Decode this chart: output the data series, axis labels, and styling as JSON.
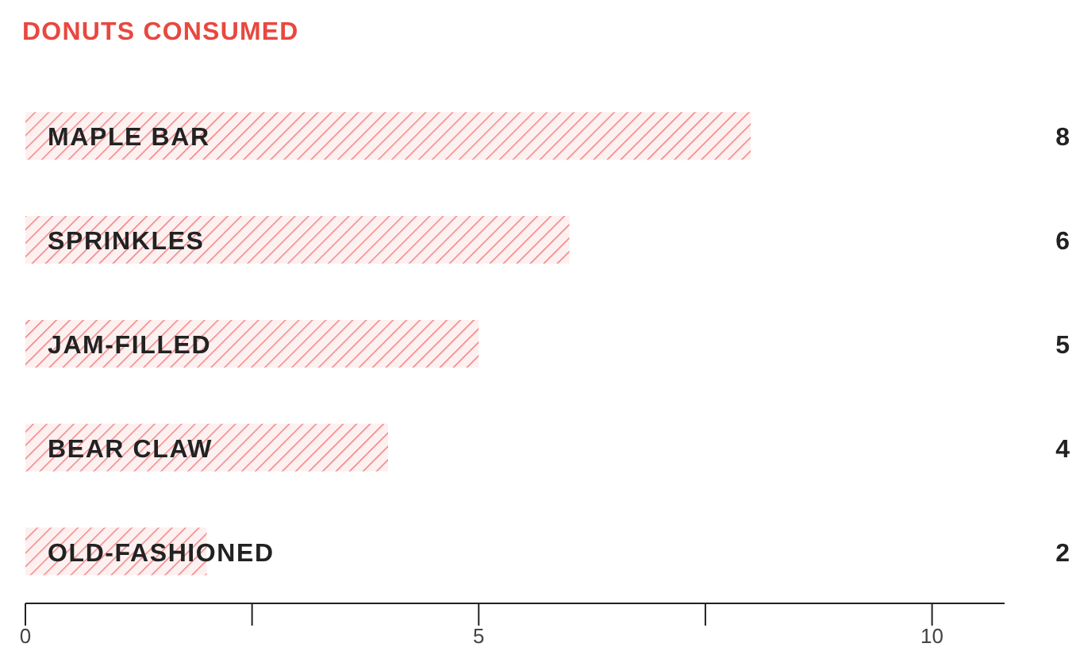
{
  "chart_data": {
    "type": "bar",
    "orientation": "horizontal",
    "title": "DONUTS CONSUMED",
    "categories": [
      "MAPLE BAR",
      "SPRINKLES",
      "JAM-FILLED",
      "BEAR CLAW",
      "OLD-FASHIONED"
    ],
    "values": [
      8,
      6,
      5,
      4,
      2
    ],
    "color": "#f07c7c",
    "xlim": [
      0,
      10.8
    ],
    "xticks": [
      0,
      {
        "value": 2.5,
        "label": null
      },
      5,
      {
        "value": 7.5,
        "label": null
      },
      10
    ],
    "data_labels": true,
    "grid": false,
    "legend": false
  }
}
